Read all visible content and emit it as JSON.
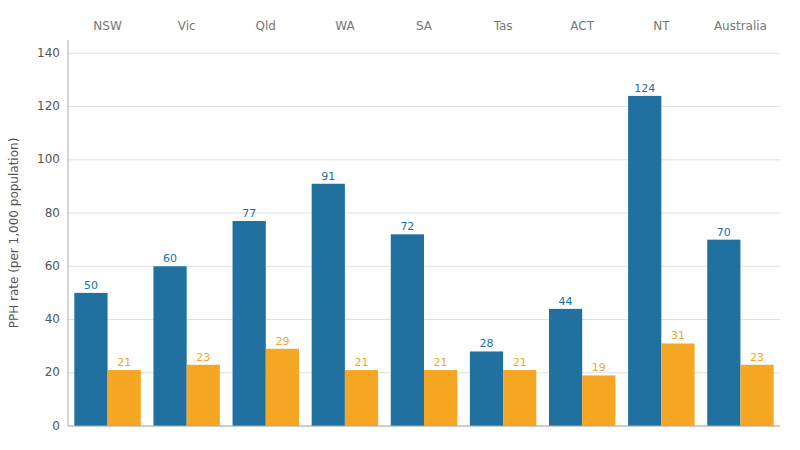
{
  "chart_data": {
    "type": "bar",
    "categories": [
      "NSW",
      "Vic",
      "Qld",
      "WA",
      "SA",
      "Tas",
      "ACT",
      "NT",
      "Australia"
    ],
    "series": [
      {
        "color": "#2070A0",
        "values": [
          50,
          60,
          77,
          91,
          72,
          28,
          44,
          124,
          70
        ]
      },
      {
        "color": "#F5A623",
        "values": [
          21,
          23,
          29,
          21,
          21,
          21,
          19,
          31,
          23
        ]
      }
    ],
    "y_label": "PPH rate (per 1,000 population)",
    "ylim": [
      0,
      145
    ],
    "yticks": [
      0,
      20,
      40,
      60,
      80,
      100,
      120,
      140
    ],
    "grid": true,
    "data_labels": true
  }
}
